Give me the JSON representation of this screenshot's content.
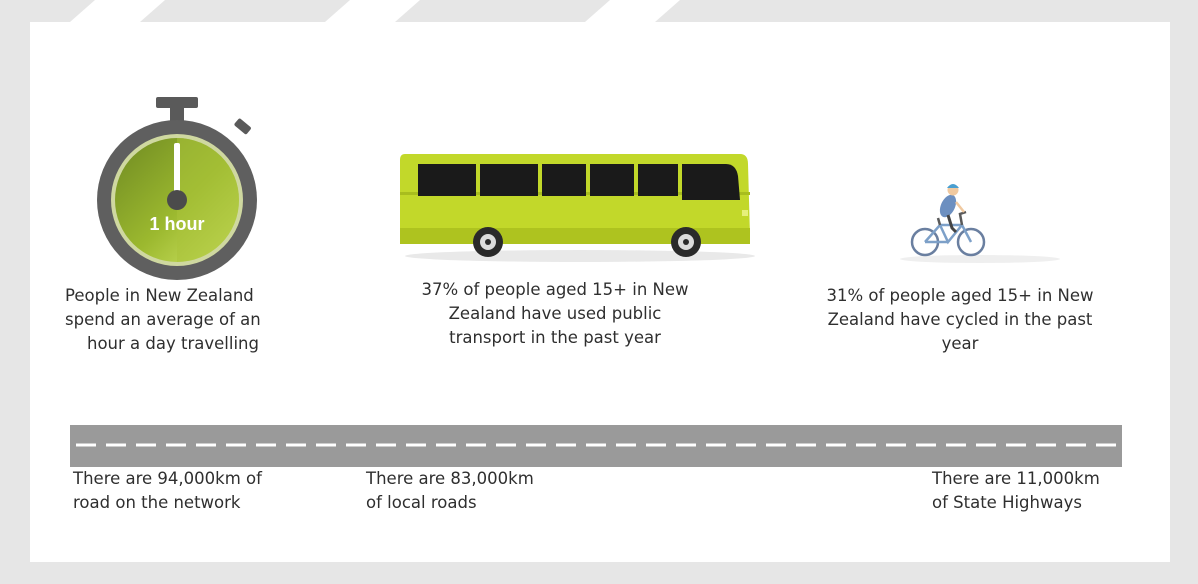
{
  "stats": {
    "time": {
      "badge": "1 hour",
      "caption": [
        "People in New Zealand",
        "spend an average of an",
        "hour a day travelling"
      ]
    },
    "public_transport": {
      "caption": [
        "37% of people aged 15+ in New",
        "Zealand have used public",
        "transport in the past year"
      ]
    },
    "cycling": {
      "caption": [
        "31% of people aged 15+ in New",
        "Zealand have cycled in the past",
        "year"
      ]
    }
  },
  "road": {
    "total": [
      "There are 94,000km of",
      "road on the network"
    ],
    "local": [
      "There are 83,000km",
      "of local roads"
    ],
    "state": [
      "There are 11,000km",
      "of State Highways"
    ]
  },
  "colors": {
    "lime": "#c2d82a",
    "olive": "#7a8a2a",
    "dark_grey": "#5a5a5a",
    "road_grey": "#9a9a9a"
  }
}
